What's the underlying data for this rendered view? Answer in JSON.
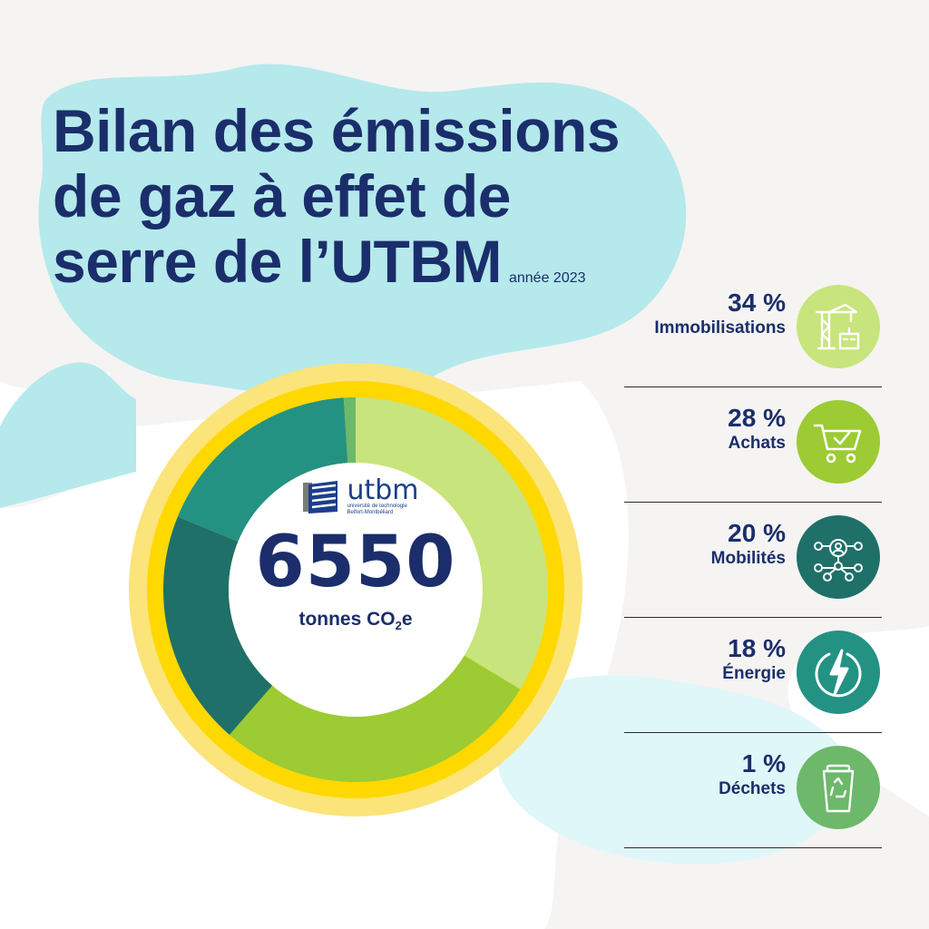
{
  "title": {
    "line1": "Bilan des émissions",
    "line2": "de gaz à effet de",
    "line3": "serre de l’UTBM",
    "year": "année 2023"
  },
  "logo": {
    "word": "utbm",
    "sub1": "université de technologie",
    "sub2": "Belfort-Montbéliard"
  },
  "center": {
    "total": "6550",
    "unit_prefix": "tonnes CO",
    "unit_sub": "2",
    "unit_suffix": "e"
  },
  "colors": {
    "title": "#1b2e6b",
    "ring_outer": "#fbe47a",
    "ring_inner": "#ffd800",
    "immobilisations": "#c8e47c",
    "achats": "#9ccb34",
    "mobilites": "#1f7068",
    "energie": "#239283",
    "dechets": "#6db86a"
  },
  "chart_data": {
    "type": "pie",
    "title": "Bilan des émissions de gaz à effet de serre de l’UTBM",
    "subtitle": "année 2023",
    "total": 6550,
    "unit": "tonnes CO2e",
    "categories": [
      "Immobilisations",
      "Achats",
      "Mobilités",
      "Énergie",
      "Déchets"
    ],
    "values": [
      34,
      28,
      20,
      18,
      1
    ],
    "value_unit": "%"
  },
  "legend": [
    {
      "pct": "34 %",
      "label": "Immobilisations",
      "icon": "construction-crane-icon",
      "color": "#c8e47c"
    },
    {
      "pct": "28 %",
      "label": "Achats",
      "icon": "shopping-cart-check-icon",
      "color": "#9ccb34"
    },
    {
      "pct": "20 %",
      "label": "Mobilités",
      "icon": "network-person-icon",
      "color": "#1f7068"
    },
    {
      "pct": "18 %",
      "label": "Énergie",
      "icon": "lightning-bolt-icon",
      "color": "#239283"
    },
    {
      "pct": "1 %",
      "label": "Déchets",
      "icon": "recycle-bin-icon",
      "color": "#6db86a"
    }
  ]
}
